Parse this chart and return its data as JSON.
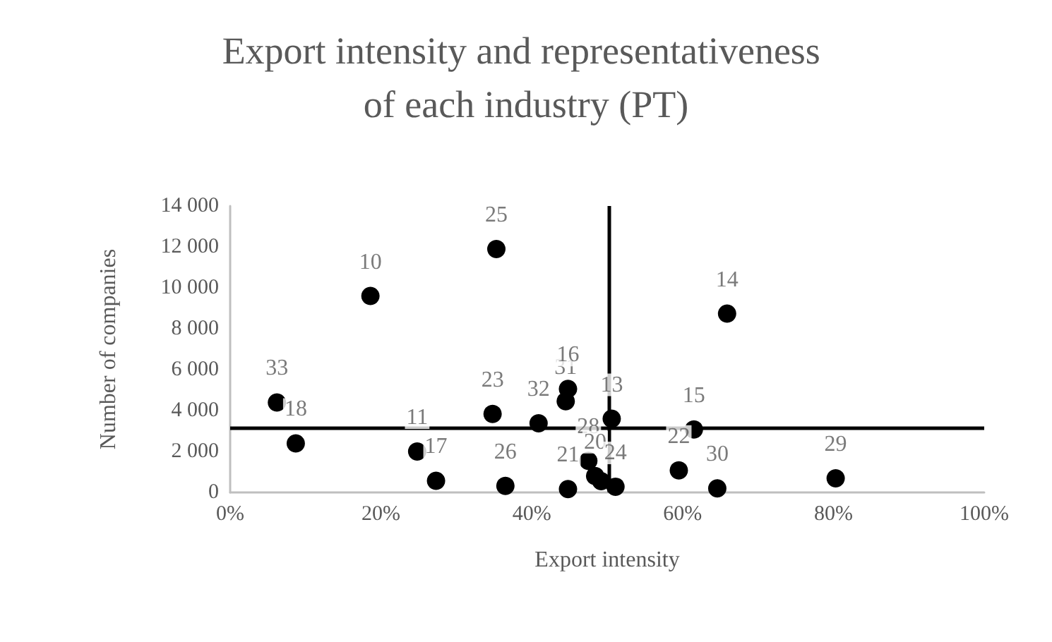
{
  "chart_data": {
    "type": "scatter",
    "title": "Export intensity and representativeness of each industry (PT)",
    "xlabel": "Export intensity",
    "ylabel": "Number of companies",
    "x": [
      6.2,
      8.7,
      18.6,
      24.8,
      27.3,
      35.3,
      34.8,
      36.5,
      40.9,
      44.5,
      44.8,
      44.8,
      50.6,
      47.5,
      48.4,
      49.2,
      51.1,
      59.5,
      61.5,
      64.6,
      65.9,
      80.3
    ],
    "series": [
      {
        "color": "#000000",
        "values": [
          4400,
          2400,
          9600,
          2000,
          570,
          11900,
          3840,
          320,
          3380,
          4460,
          5060,
          160,
          3600,
          1540,
          800,
          550,
          280,
          1080,
          3080,
          200,
          8740,
          690
        ]
      }
    ],
    "annotations": [
      {
        "text": "33",
        "x": 6.2,
        "y": 4400
      },
      {
        "text": "18",
        "x": 8.7,
        "y": 2400
      },
      {
        "text": "10",
        "x": 18.6,
        "y": 9600
      },
      {
        "text": "11",
        "x": 24.8,
        "y": 2000
      },
      {
        "text": "17",
        "x": 27.3,
        "y": 570
      },
      {
        "text": "25",
        "x": 35.3,
        "y": 11900
      },
      {
        "text": "23",
        "x": 34.8,
        "y": 3840
      },
      {
        "text": "26",
        "x": 36.5,
        "y": 320
      },
      {
        "text": "32",
        "x": 40.9,
        "y": 3380
      },
      {
        "text": "31",
        "x": 44.5,
        "y": 4460
      },
      {
        "text": "16",
        "x": 44.8,
        "y": 5060
      },
      {
        "text": "21",
        "x": 44.8,
        "y": 160
      },
      {
        "text": "13",
        "x": 50.6,
        "y": 3600
      },
      {
        "text": "28",
        "x": 47.5,
        "y": 1540
      },
      {
        "text": "20",
        "x": 48.4,
        "y": 800
      },
      {
        "text": "24",
        "x": 51.1,
        "y": 280
      },
      {
        "text": "22",
        "x": 59.5,
        "y": 1080
      },
      {
        "text": "15",
        "x": 61.5,
        "y": 3080
      },
      {
        "text": "30",
        "x": 64.6,
        "y": 200
      },
      {
        "text": "14",
        "x": 65.9,
        "y": 8740
      },
      {
        "text": "29",
        "x": 80.3,
        "y": 690
      }
    ],
    "ref_lines": [
      {
        "axis": "x",
        "value": 50.3,
        "color": "#000000"
      },
      {
        "axis": "y",
        "value": 3150,
        "color": "#000000"
      }
    ],
    "xlim": [
      0,
      100
    ],
    "xticks": [
      {
        "value": 0,
        "label": "0%"
      },
      {
        "value": 20,
        "label": "20%"
      },
      {
        "value": 40,
        "label": "40%"
      },
      {
        "value": 60,
        "label": "60%"
      },
      {
        "value": 80,
        "label": "80%"
      },
      {
        "value": 100,
        "label": "100%"
      }
    ],
    "ylim": [
      0,
      14000
    ],
    "yticks": [
      {
        "value": 0,
        "label": "0"
      },
      {
        "value": 2000,
        "label": "2 000"
      },
      {
        "value": 4000,
        "label": "4 000"
      },
      {
        "value": 6000,
        "label": "6 000"
      },
      {
        "value": 8000,
        "label": "8 000"
      },
      {
        "value": 10000,
        "label": "10 000"
      },
      {
        "value": 12000,
        "label": "12 000"
      },
      {
        "value": 14000,
        "label": "14 000"
      }
    ],
    "grid": false,
    "marker": "circle"
  }
}
